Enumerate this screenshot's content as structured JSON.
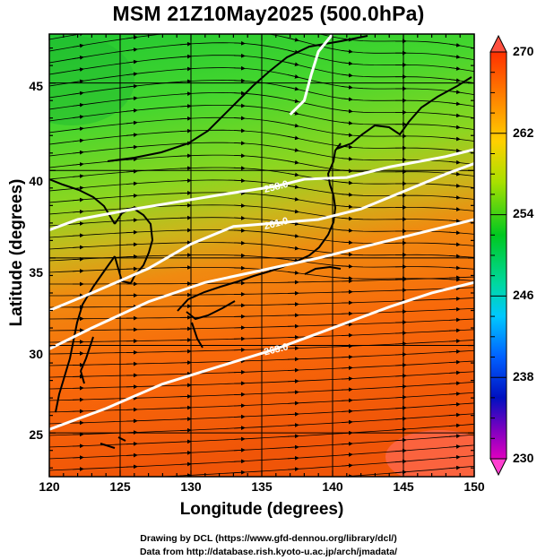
{
  "title": "MSM 21Z10May2025 (500.0hPa)",
  "xlabel": "Longitude (degrees)",
  "ylabel": "Latitude  (degrees)",
  "x_ticks": [
    "120",
    "125",
    "130",
    "135",
    "140",
    "145",
    "150"
  ],
  "y_ticks": [
    "25",
    "30",
    "35",
    "40",
    "45"
  ],
  "colorbar_ticks": [
    "270",
    "262",
    "254",
    "246",
    "238",
    "230"
  ],
  "contour_labels": [
    "258.0",
    "261.0",
    "263.0"
  ],
  "credits": [
    "Drawing by DCL (https://www.gfd-dennou.org/library/dcl/)",
    "Data from http://database.rish.kyoto-u.ac.jp/arch/jmadata/"
  ],
  "colors": {
    "cold": "#00c800",
    "warm": "#ff5a00",
    "contour": "#ffffff",
    "coast": "#000000"
  },
  "chart_data": {
    "type": "heatmap",
    "variable": "temperature at 500.0hPa",
    "xlim": [
      120,
      150
    ],
    "ylim": [
      22.5,
      47.8
    ],
    "colorbar_range": [
      230,
      270
    ],
    "colorbar_ticks": [
      270,
      262,
      254,
      246,
      238,
      230
    ],
    "contours": [
      {
        "label": "258.0",
        "points": [
          [
            120,
            36.6
          ],
          [
            122,
            37.2
          ],
          [
            126,
            37.8
          ],
          [
            129,
            38.2
          ],
          [
            132,
            38.6
          ],
          [
            136,
            39.1
          ],
          [
            138,
            39.5
          ],
          [
            141,
            39.6
          ],
          [
            144,
            40.2
          ],
          [
            148,
            40.8
          ],
          [
            150,
            41.2
          ]
        ]
      },
      {
        "label": "261.0",
        "points": [
          [
            120,
            32.0
          ],
          [
            123,
            33.0
          ],
          [
            127,
            34.4
          ],
          [
            130,
            35.8
          ],
          [
            133,
            36.8
          ],
          [
            136,
            37.0
          ],
          [
            139,
            37.2
          ],
          [
            142,
            37.8
          ],
          [
            145,
            38.8
          ],
          [
            148,
            39.8
          ],
          [
            150,
            40.4
          ]
        ]
      },
      {
        "label": "",
        "points": [
          [
            120,
            29.8
          ],
          [
            123,
            31.0
          ],
          [
            127,
            32.5
          ],
          [
            131,
            33.6
          ],
          [
            135,
            34.3
          ],
          [
            139,
            35.0
          ],
          [
            143,
            35.8
          ],
          [
            147,
            36.6
          ],
          [
            150,
            37.2
          ]
        ]
      },
      {
        "label": "263.0",
        "points": [
          [
            120,
            25.2
          ],
          [
            124,
            26.4
          ],
          [
            128,
            27.8
          ],
          [
            132,
            28.8
          ],
          [
            136,
            29.8
          ],
          [
            140,
            31.0
          ],
          [
            144,
            32.2
          ],
          [
            147,
            33.0
          ],
          [
            150,
            33.6
          ]
        ]
      },
      {
        "label": "",
        "points": [
          [
            137,
            43.2
          ],
          [
            138,
            44.0
          ],
          [
            138.5,
            45.5
          ],
          [
            139,
            46.8
          ],
          [
            140,
            47.8
          ]
        ]
      }
    ]
  }
}
